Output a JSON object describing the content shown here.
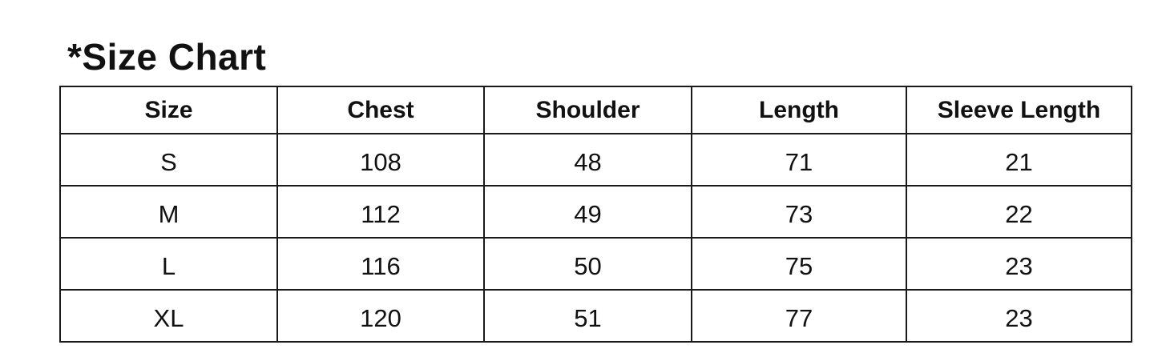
{
  "title": "*Size Chart",
  "table": {
    "headers": [
      "Size",
      "Chest",
      "Shoulder",
      "Length",
      "Sleeve Length"
    ],
    "rows": [
      [
        "S",
        "108",
        "48",
        "71",
        "21"
      ],
      [
        "M",
        "112",
        "49",
        "73",
        "22"
      ],
      [
        "L",
        "116",
        "50",
        "75",
        "23"
      ],
      [
        "XL",
        "120",
        "51",
        "77",
        "23"
      ]
    ]
  }
}
